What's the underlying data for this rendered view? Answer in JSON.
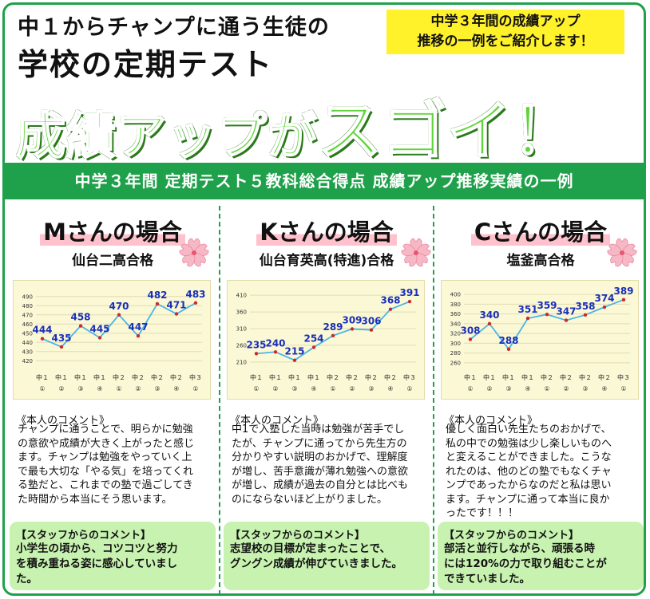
{
  "header": {
    "line1": "中１からチャンプに通う生徒の",
    "line2": "学校の定期テスト",
    "big_small": "成績アップが",
    "big_large": "スゴイ！",
    "note": [
      "中学３年間の成績アップ",
      "推移の一例をご紹介します！"
    ]
  },
  "band": "中学３年間 定期テスト５教科総合得点 成績アップ推移実績の一例",
  "colors": {
    "accent": "#1fa04a",
    "line": "#4bb5e6",
    "point": "#cc2a2a",
    "label": "#1a2fb8",
    "staff_bg": "#c7f2b0",
    "note_bg": "#fff12a"
  },
  "students": [
    {
      "title": "Mさんの場合",
      "school": "仙台二高合格",
      "comment_header": "《本人のコメント》",
      "comment": [
        "チャンプに通うことで、明らかに勉強",
        "の意欲や成績が大きく上がったと感じ",
        "ます。チャンプは勉強をやっていく上",
        "で最も大切な「やる気」を培ってくれ",
        "る塾だと、これまでの塾で過ごしてき",
        "た時間から本当にそう思います。"
      ],
      "staff_header": "【スタッフからのコメント】",
      "staff": [
        "小学生の頃から、コツコツと努力",
        "を積み重ねる姿に感心していまし",
        "た。"
      ],
      "chart_data": {
        "type": "line",
        "categories": [
          [
            "中１",
            "①"
          ],
          [
            "中１",
            "②"
          ],
          [
            "中１",
            "③"
          ],
          [
            "中１",
            "④"
          ],
          [
            "中２",
            "①"
          ],
          [
            "中２",
            "②"
          ],
          [
            "中２",
            "③"
          ],
          [
            "中２",
            "④"
          ],
          [
            "中３",
            "①"
          ]
        ],
        "values": [
          444,
          435,
          458,
          445,
          470,
          447,
          482,
          471,
          483
        ],
        "yticks": [
          420,
          430,
          440,
          450,
          460,
          470,
          480,
          490
        ],
        "ylim": [
          415,
          495
        ]
      }
    },
    {
      "title": "Kさんの場合",
      "school": "仙台育英高(特進)合格",
      "comment_header": "《本人のコメント》",
      "comment": [
        "中1で入塾した当時は勉強が苦手でし",
        "たが、チャンプに通ってから先生方の",
        "分かりやすい説明のおかげで、理解度",
        "が増し、苦手意識が薄れ勉強への意欲",
        "が増し、成績が過去の自分とは比べも",
        "のにならないほど上がりました。"
      ],
      "staff_header": "【スタッフからのコメント】",
      "staff": [
        "志望校の目標が定まったことで、",
        "グングン成績が伸びていきました。"
      ],
      "chart_data": {
        "type": "line",
        "categories": [
          [
            "中１",
            "①"
          ],
          [
            "中１",
            "②"
          ],
          [
            "中１",
            "③"
          ],
          [
            "中１",
            "④"
          ],
          [
            "中２",
            "①"
          ],
          [
            "中２",
            "②"
          ],
          [
            "中２",
            "③"
          ],
          [
            "中２",
            "④"
          ],
          [
            "中３",
            "①"
          ]
        ],
        "values": [
          235,
          240,
          215,
          254,
          289,
          309,
          306,
          368,
          391
        ],
        "yticks": [
          210,
          260,
          310,
          360,
          410
        ],
        "ylim": [
          200,
          420
        ]
      }
    },
    {
      "title": "Cさんの場合",
      "school": "塩釜高合格",
      "comment_header": "《本人のコメント》",
      "comment": [
        "優しく面白い先生たちのおかげで、",
        "私の中での勉強は少し楽しいものへ",
        "と変えることができました。こうな",
        "れたのは、他のどの塾でもなくチャ",
        "ンプであったからなのだと私は思い",
        "ます。チャンプに通って本当に良か",
        "ったです！！！"
      ],
      "staff_header": "【スタッフからのコメント】",
      "staff": [
        "部活と並行しながら、頑張る時",
        "には120%の力で取り組むことが",
        "できていました。"
      ],
      "chart_data": {
        "type": "line",
        "categories": [
          [
            "中１",
            "①"
          ],
          [
            "中１",
            "②"
          ],
          [
            "中１",
            "③"
          ],
          [
            "中１",
            "④"
          ],
          [
            "中２",
            "①"
          ],
          [
            "中２",
            "②"
          ],
          [
            "中２",
            "③"
          ],
          [
            "中２",
            "④"
          ],
          [
            "中３",
            "①"
          ]
        ],
        "values": [
          308,
          340,
          288,
          351,
          359,
          347,
          358,
          374,
          389
        ],
        "yticks": [
          260,
          280,
          300,
          320,
          340,
          360,
          380,
          400
        ],
        "ylim": [
          255,
          405
        ]
      }
    }
  ]
}
